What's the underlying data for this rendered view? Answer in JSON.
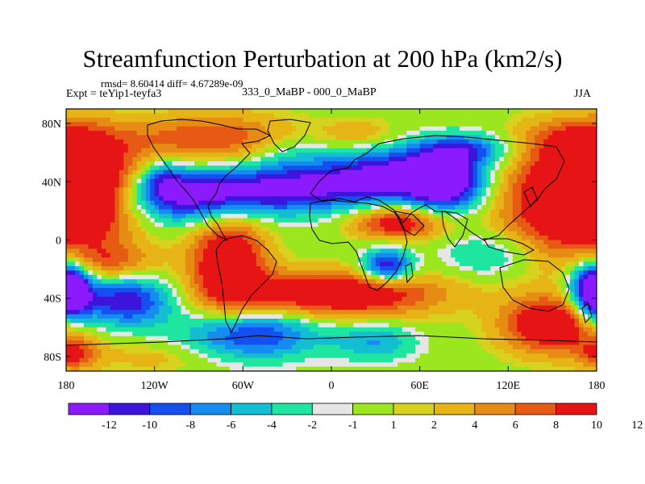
{
  "chart_data": {
    "type": "heatmap",
    "title": "Streamfunction Perturbation at 200 hPa (km2/s)",
    "stats_text": "rmsd= 8.60414 diff= 4.67289e-09",
    "left_label": "Expt = teYip1-teyfa3",
    "center_label": "333_0_MaBP - 000_0_MaBP",
    "right_label": "JJA",
    "x_axis": {
      "range": [
        -180,
        180
      ],
      "ticks": [
        -180,
        -120,
        -60,
        0,
        60,
        120,
        180
      ],
      "tick_labels": [
        "180",
        "120W",
        "60W",
        "0",
        "60E",
        "120E",
        "180"
      ]
    },
    "y_axis": {
      "range": [
        -90,
        90
      ],
      "ticks": [
        80,
        40,
        0,
        -40,
        -80
      ],
      "tick_labels": [
        "80N",
        "40N",
        "0",
        "40S",
        "80S"
      ]
    },
    "colorbar": {
      "colors": [
        "#8c1aff",
        "#3c14dc",
        "#1450f0",
        "#148cf0",
        "#14bed2",
        "#1ee6a0",
        "#e6e6e6",
        "#9be61e",
        "#d7d21e",
        "#e6b414",
        "#e68c14",
        "#e65a14",
        "#e61414"
      ],
      "labels": [
        "-12",
        "-10",
        "-8",
        "-6",
        "-4",
        "-2",
        "-1",
        "1",
        "2",
        "4",
        "6",
        "8",
        "10",
        "12"
      ]
    },
    "blobs": [
      {
        "lon": -165,
        "lat": 35,
        "value": 13,
        "sx": 28,
        "sy": 24
      },
      {
        "lon": 160,
        "lat": 28,
        "value": 13,
        "sx": 32,
        "sy": 26
      },
      {
        "lon": -100,
        "lat": 30,
        "value": -13,
        "sx": 35,
        "sy": 13
      },
      {
        "lon": -30,
        "lat": 35,
        "value": -11,
        "sx": 38,
        "sy": 12
      },
      {
        "lon": 40,
        "lat": 45,
        "value": -12,
        "sx": 35,
        "sy": 14
      },
      {
        "lon": 78,
        "lat": 38,
        "value": -13,
        "sx": 18,
        "sy": 13
      },
      {
        "lon": 90,
        "lat": 62,
        "value": -9,
        "sx": 22,
        "sy": 8
      },
      {
        "lon": -115,
        "lat": 42,
        "value": -6,
        "sx": 10,
        "sy": 9
      },
      {
        "lon": -70,
        "lat": -15,
        "value": 13,
        "sx": 18,
        "sy": 24
      },
      {
        "lon": 5,
        "lat": -37,
        "value": 13,
        "sx": 48,
        "sy": 11
      },
      {
        "lon": -140,
        "lat": -42,
        "value": -12,
        "sx": 22,
        "sy": 12
      },
      {
        "lon": -55,
        "lat": -65,
        "value": -11,
        "sx": 32,
        "sy": 12
      },
      {
        "lon": 30,
        "lat": -70,
        "value": -6,
        "sx": 20,
        "sy": 9
      },
      {
        "lon": 38,
        "lat": -18,
        "value": -13,
        "sx": 12,
        "sy": 8
      },
      {
        "lon": 45,
        "lat": 12,
        "value": 11,
        "sx": 22,
        "sy": 8
      },
      {
        "lon": 150,
        "lat": -58,
        "value": 13,
        "sx": 24,
        "sy": 14
      },
      {
        "lon": 178,
        "lat": -35,
        "value": -12,
        "sx": 12,
        "sy": 14
      },
      {
        "lon": -178,
        "lat": -35,
        "value": -11,
        "sx": 10,
        "sy": 14
      },
      {
        "lon": -150,
        "lat": -15,
        "value": 6,
        "sx": 22,
        "sy": 9
      },
      {
        "lon": -80,
        "lat": 70,
        "value": 8,
        "sx": 40,
        "sy": 12
      },
      {
        "lon": 20,
        "lat": 72,
        "value": 4,
        "sx": 20,
        "sy": 8
      },
      {
        "lon": -30,
        "lat": 60,
        "value": -3,
        "sx": 18,
        "sy": 10
      },
      {
        "lon": 170,
        "lat": 70,
        "value": 6,
        "sx": 28,
        "sy": 10
      },
      {
        "lon": 105,
        "lat": -10,
        "value": -5,
        "sx": 20,
        "sy": 10
      },
      {
        "lon": -120,
        "lat": -80,
        "value": 3,
        "sx": 30,
        "sy": 8
      },
      {
        "lon": -175,
        "lat": -78,
        "value": 8,
        "sx": 12,
        "sy": 8
      }
    ]
  }
}
